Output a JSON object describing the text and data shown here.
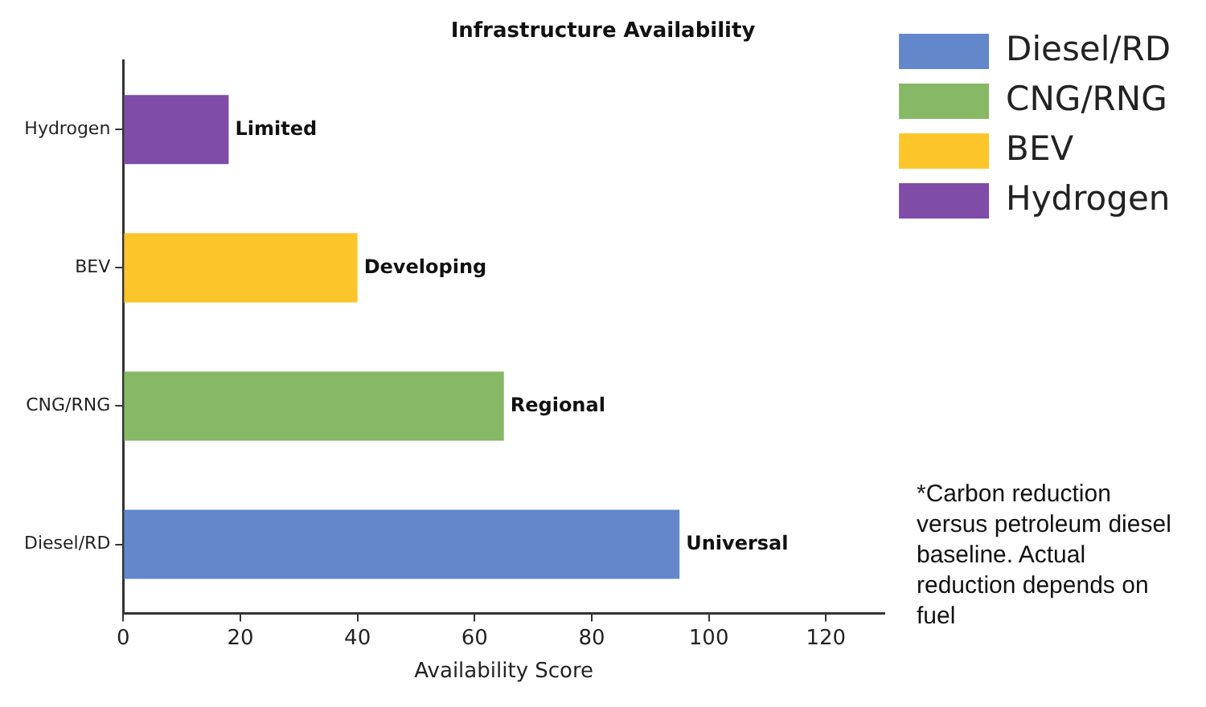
{
  "chart_data": {
    "type": "bar",
    "orientation": "horizontal",
    "title": "Infrastructure Availability",
    "xlabel": "Availability Score",
    "categories": [
      "Hydrogen",
      "BEV",
      "CNG/RNG",
      "Diesel/RD"
    ],
    "series": [
      {
        "name": "Diesel/RD",
        "color": "#6287cb",
        "values": [
          null,
          null,
          null,
          95
        ],
        "value_labels": [
          null,
          null,
          null,
          "Universal"
        ]
      },
      {
        "name": "CNG/RNG",
        "color": "#86b865",
        "values": [
          null,
          null,
          65,
          null
        ],
        "value_labels": [
          null,
          null,
          "Regional",
          null
        ]
      },
      {
        "name": "BEV",
        "color": "#fcc52a",
        "values": [
          null,
          40,
          null,
          null
        ],
        "value_labels": [
          null,
          "Developing",
          null,
          null
        ]
      },
      {
        "name": "Hydrogen",
        "color": "#7f4ca8",
        "values": [
          18,
          null,
          null,
          null
        ],
        "value_labels": [
          "Limited",
          null,
          null,
          null
        ]
      }
    ],
    "xlim": [
      0,
      130
    ],
    "xticks": [
      0,
      20,
      40,
      60,
      80,
      100,
      120
    ],
    "grid": false,
    "legend": "top right",
    "annotations": [
      "*Carbon reduction versus petroleum diesel baseline. Actual reduction depends on fuel"
    ]
  }
}
